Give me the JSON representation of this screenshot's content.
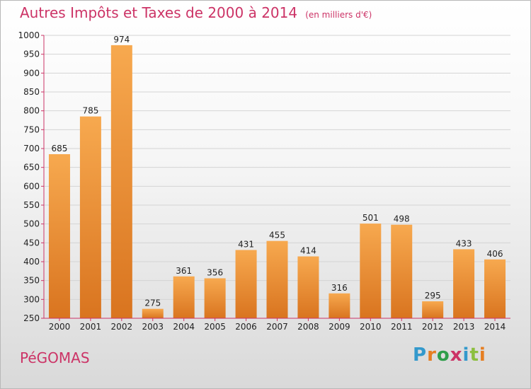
{
  "title": {
    "main": "Autres Impôts et Taxes de 2000 à 2014",
    "unit": "(en milliers d'€)"
  },
  "place": "PéGOMAS",
  "logo": {
    "text": "Proxiti",
    "letters": [
      "P",
      "r",
      "o",
      "x",
      "i",
      "t",
      "i"
    ],
    "colors": [
      "#3399cc",
      "#e67e22",
      "#2e9e4a",
      "#cc3366",
      "#3399cc",
      "#8cbf3f",
      "#e67e22"
    ]
  },
  "colors": {
    "bar_top": "#f7a94f",
    "bar_bottom": "#d9741f",
    "axis": "#cc3366",
    "grid": "#d4d4d4",
    "text": "#222222"
  },
  "chart_data": {
    "type": "bar",
    "categories": [
      "2000",
      "2001",
      "2002",
      "2003",
      "2004",
      "2005",
      "2006",
      "2007",
      "2008",
      "2009",
      "2010",
      "2011",
      "2012",
      "2013",
      "2014"
    ],
    "values": [
      685,
      785,
      974,
      275,
      361,
      356,
      431,
      455,
      414,
      316,
      501,
      498,
      295,
      433,
      406
    ],
    "ylim": [
      250,
      1000
    ],
    "yticks": [
      250,
      300,
      350,
      400,
      450,
      500,
      550,
      600,
      650,
      700,
      750,
      800,
      850,
      900,
      950,
      1000
    ],
    "grid": true,
    "data_labels": true
  }
}
